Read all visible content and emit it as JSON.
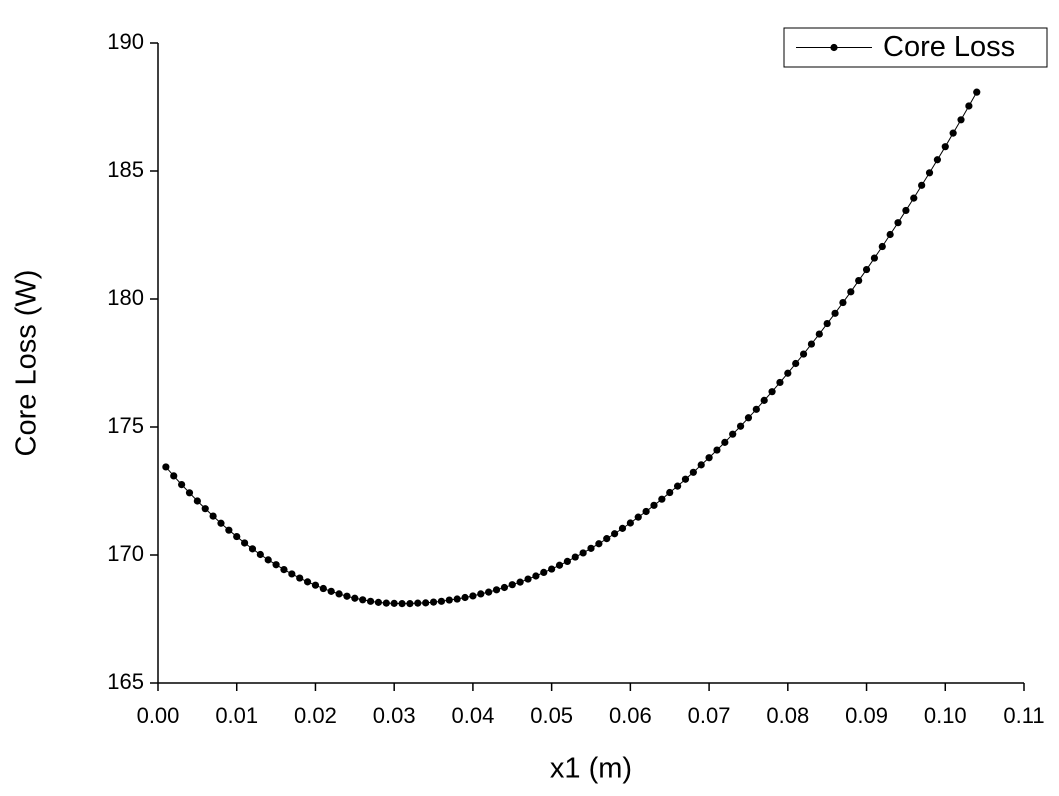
{
  "chart_data": {
    "type": "line",
    "xlabel": "x1 (m)",
    "ylabel": "Core Loss (W)",
    "x": [
      0.001,
      0.002,
      0.003,
      0.004,
      0.005,
      0.006,
      0.007,
      0.008,
      0.009,
      0.01,
      0.011,
      0.012,
      0.013,
      0.014,
      0.015,
      0.016,
      0.017,
      0.018,
      0.019,
      0.02,
      0.021,
      0.022,
      0.023,
      0.024,
      0.025,
      0.026,
      0.027,
      0.028,
      0.029,
      0.03,
      0.031,
      0.032,
      0.033,
      0.034,
      0.035,
      0.036,
      0.037,
      0.038,
      0.039,
      0.04,
      0.041,
      0.042,
      0.043,
      0.044,
      0.045,
      0.046,
      0.047,
      0.048,
      0.049,
      0.05,
      0.051,
      0.052,
      0.053,
      0.054,
      0.055,
      0.056,
      0.057,
      0.058,
      0.059,
      0.06,
      0.061,
      0.062,
      0.063,
      0.064,
      0.065,
      0.066,
      0.067,
      0.068,
      0.069,
      0.07,
      0.071,
      0.072,
      0.073,
      0.074,
      0.075,
      0.076,
      0.077,
      0.078,
      0.079,
      0.08,
      0.081,
      0.082,
      0.083,
      0.084,
      0.085,
      0.086,
      0.087,
      0.088,
      0.089,
      0.09,
      0.091,
      0.092,
      0.093,
      0.094,
      0.095,
      0.096,
      0.097,
      0.098,
      0.099,
      0.1,
      0.101,
      0.102,
      0.103,
      0.104
    ],
    "series": [
      {
        "name": "Core Loss",
        "color": "#000000",
        "values": [
          173.44,
          173.09,
          172.75,
          172.43,
          172.11,
          171.81,
          171.52,
          171.24,
          170.97,
          170.72,
          170.47,
          170.24,
          170.02,
          169.81,
          169.62,
          169.43,
          169.26,
          169.1,
          168.95,
          168.82,
          168.69,
          168.58,
          168.48,
          168.39,
          168.31,
          168.25,
          168.19,
          168.15,
          168.12,
          168.11,
          168.1,
          168.1,
          168.12,
          168.13,
          168.16,
          168.19,
          168.24,
          168.28,
          168.34,
          168.4,
          168.48,
          168.55,
          168.64,
          168.73,
          168.84,
          168.94,
          169.06,
          169.18,
          169.32,
          169.45,
          169.6,
          169.75,
          169.92,
          170.08,
          170.26,
          170.44,
          170.64,
          170.83,
          171.04,
          171.25,
          171.48,
          171.7,
          171.94,
          172.18,
          172.44,
          172.69,
          172.96,
          173.23,
          173.52,
          173.8,
          174.1,
          174.4,
          174.72,
          175.03,
          175.36,
          175.69,
          176.04,
          176.38,
          176.74,
          177.1,
          177.48,
          177.85,
          178.24,
          178.63,
          179.04,
          179.44,
          179.86,
          180.28,
          180.72,
          181.15,
          181.6,
          182.05,
          182.52,
          182.98,
          183.46,
          183.94,
          184.44,
          184.93,
          185.44,
          185.95,
          186.48,
          187.0,
          187.54,
          188.08
        ]
      }
    ],
    "xlim": [
      0,
      0.11
    ],
    "xticks": [
      {
        "value": 0,
        "label": "0.00"
      },
      {
        "value": 0.01,
        "label": "0.01"
      },
      {
        "value": 0.02,
        "label": "0.02"
      },
      {
        "value": 0.03,
        "label": "0.03"
      },
      {
        "value": 0.04,
        "label": "0.04"
      },
      {
        "value": 0.05,
        "label": "0.05"
      },
      {
        "value": 0.06,
        "label": "0.06"
      },
      {
        "value": 0.07,
        "label": "0.07"
      },
      {
        "value": 0.08,
        "label": "0.08"
      },
      {
        "value": 0.09,
        "label": "0.09"
      },
      {
        "value": 0.1,
        "label": "0.10"
      },
      {
        "value": 0.11,
        "label": "0.11"
      }
    ],
    "ylim": [
      165,
      190
    ],
    "yticks": [
      165,
      170,
      175,
      180,
      185,
      190
    ],
    "grid": false,
    "legend": "upper right"
  }
}
